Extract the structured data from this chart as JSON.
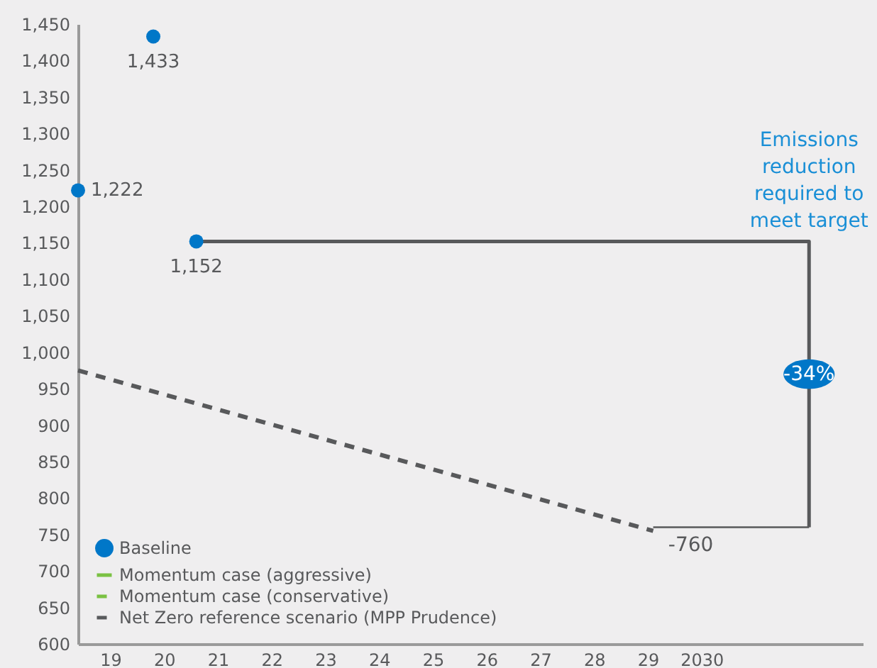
{
  "chart_data": {
    "type": "scatter",
    "xlim": [
      2018.4,
      2033
    ],
    "ylim": [
      600,
      1450
    ],
    "xticks": [
      {
        "value": 2019,
        "label": "19"
      },
      {
        "value": 2020,
        "label": "20"
      },
      {
        "value": 2021,
        "label": "21"
      },
      {
        "value": 2022,
        "label": "22"
      },
      {
        "value": 2023,
        "label": "23"
      },
      {
        "value": 2024,
        "label": "24"
      },
      {
        "value": 2025,
        "label": "25"
      },
      {
        "value": 2026,
        "label": "26"
      },
      {
        "value": 2027,
        "label": "27"
      },
      {
        "value": 2028,
        "label": "28"
      },
      {
        "value": 2029,
        "label": "29"
      },
      2030
    ],
    "yticks": [
      600,
      650,
      700,
      750,
      800,
      850,
      900,
      950,
      {
        "value": 1000,
        "label": "1,000"
      },
      {
        "value": 1050,
        "label": "1,050"
      },
      {
        "value": 1100,
        "label": "1,100"
      },
      {
        "value": 1150,
        "label": "1,150"
      },
      {
        "value": 1200,
        "label": "1,200"
      },
      {
        "value": 1250,
        "label": "1,250"
      },
      {
        "value": 1300,
        "label": "1,300"
      },
      {
        "value": 1350,
        "label": "1,350"
      },
      {
        "value": 1400,
        "label": "1,400"
      },
      {
        "value": 1450,
        "label": "1,450"
      }
    ],
    "grid": false,
    "legend": "bottom left",
    "series": [
      {
        "name": "Baseline",
        "color": "#0077c8",
        "x": [
          2018.4,
          2019.8,
          2020.6
        ],
        "values": [
          1222,
          1433,
          1152
        ],
        "value_labels": [
          "1,222",
          "1,433",
          "1,152"
        ],
        "marker": "circle"
      },
      {
        "name": "Momentum case (aggressive)",
        "type": "line",
        "color": "#7ac143",
        "line_style": "solid"
      },
      {
        "name": "Momentum case (conservative)",
        "type": "line",
        "color": "#7ac143",
        "line_style": "dashed"
      },
      {
        "name": "Net Zero reference scenario (MPP Prudence)",
        "type": "line",
        "color": "#58595b",
        "x": [
          2018.4,
          2029.1
        ],
        "values": [
          975,
          755
        ],
        "line_style": "dashed"
      },
      {
        "type": "line",
        "color": "#58595b",
        "x": [
          2020.6,
          2032,
          2032
        ],
        "values": [
          1152,
          1152,
          760
        ],
        "line_style": "solid"
      }
    ],
    "ref_lines": [
      {
        "axis": "y",
        "value": 760,
        "color": "#58595b"
      }
    ],
    "annotations": [
      "Emissions reduction required to meet target",
      {
        "text": "-34%",
        "x": 2032,
        "y": 970
      },
      {
        "text": "-760",
        "x": 2029.8,
        "y": 760
      }
    ]
  }
}
